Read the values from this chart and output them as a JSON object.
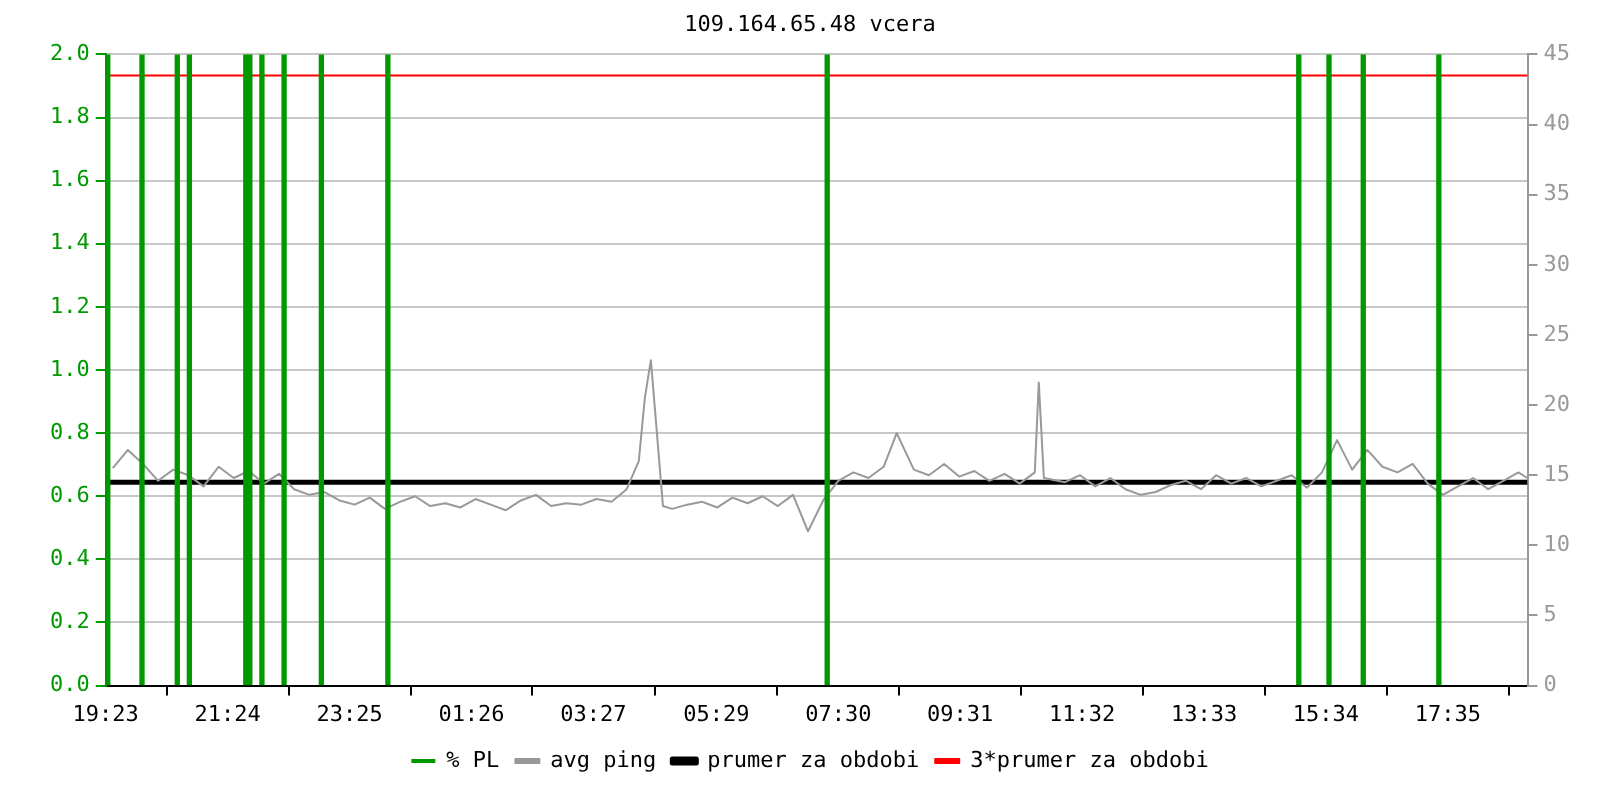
{
  "chart_data": {
    "type": "line",
    "title": "109.164.65.48 vcera",
    "xlim": [
      "--01-01T19:23",
      "--01-02T18:54"
    ],
    "xticks": [
      {
        "value": "--01-01T19:23",
        "label": "19:23"
      },
      {
        "value": "--01-01T21:24",
        "label": "21:24"
      },
      {
        "value": "--01-01T23:25",
        "label": "23:25"
      },
      {
        "value": "--01-02T01:26",
        "label": "01:26"
      },
      {
        "value": "--01-02T03:27",
        "label": "03:27"
      },
      {
        "value": "--01-02T05:29",
        "label": "05:29"
      },
      {
        "value": "--01-02T07:30",
        "label": "07:30"
      },
      {
        "value": "--01-02T09:31",
        "label": "09:31"
      },
      {
        "value": "--01-02T11:32",
        "label": "11:32"
      },
      {
        "value": "--01-02T13:33",
        "label": "13:33"
      },
      {
        "value": "--01-02T15:34",
        "label": "15:34"
      },
      {
        "value": "--01-02T17:35",
        "label": "17:35"
      }
    ],
    "ylim": [
      0,
      2
    ],
    "yticks": [
      {
        "value": 0,
        "label": "0.0"
      },
      {
        "value": 0.2,
        "label": "0.2"
      },
      {
        "value": 0.4,
        "label": "0.4"
      },
      {
        "value": 0.6,
        "label": "0.6"
      },
      {
        "value": 0.8,
        "label": "0.8"
      },
      {
        "value": 1,
        "label": "1.0"
      },
      {
        "value": 1.2,
        "label": "1.2"
      },
      {
        "value": 1.4,
        "label": "1.4"
      },
      {
        "value": 1.6,
        "label": "1.6"
      },
      {
        "value": 1.8,
        "label": "1.8"
      },
      {
        "value": 2,
        "label": "2.0"
      }
    ],
    "y2lim": [
      0,
      45
    ],
    "y2ticks": [
      0,
      5,
      10,
      15,
      20,
      25,
      30,
      35,
      40,
      45
    ],
    "grid": "y",
    "legend": "bottom",
    "series": [
      {
        "name": "% PL",
        "type": "bar",
        "color": "#009900",
        "x": [
          "--01-01T19:25",
          "--01-01T19:59",
          "--01-01T20:34",
          "--01-01T20:46",
          "--01-01T21:42",
          "--01-01T21:46",
          "--01-01T21:58",
          "--01-01T22:20",
          "--01-01T22:57",
          "--01-02T00:03",
          "--01-02T07:19",
          "--01-02T15:07",
          "--01-02T15:37",
          "--01-02T16:11",
          "--01-02T17:26"
        ],
        "values": [
          2,
          2,
          2,
          2,
          2,
          2,
          2,
          2,
          2,
          2,
          2,
          2,
          2,
          2,
          2
        ]
      },
      {
        "name": "avg ping",
        "axis": "y2",
        "color": "#999999",
        "x": [
          "--01-01T19:30",
          "--01-01T19:45",
          "--01-01T20:00",
          "--01-01T20:15",
          "--01-01T20:30",
          "--01-01T20:45",
          "--01-01T21:00",
          "--01-01T21:15",
          "--01-01T21:30",
          "--01-01T21:45",
          "--01-01T22:00",
          "--01-01T22:15",
          "--01-01T22:30",
          "--01-01T22:45",
          "--01-01T23:00",
          "--01-01T23:15",
          "--01-01T23:30",
          "--01-01T23:45",
          "--01-02T00:00",
          "--01-02T00:15",
          "--01-02T00:30",
          "--01-02T00:45",
          "--01-02T01:00",
          "--01-02T01:15",
          "--01-02T01:30",
          "--01-02T01:45",
          "--01-02T02:00",
          "--01-02T02:15",
          "--01-02T02:30",
          "--01-02T02:45",
          "--01-02T03:00",
          "--01-02T03:15",
          "--01-02T03:30",
          "--01-02T03:45",
          "--01-02T04:00",
          "--01-02T04:12",
          "--01-02T04:18",
          "--01-02T04:24",
          "--01-02T04:30",
          "--01-02T04:36",
          "--01-02T04:45",
          "--01-02T05:00",
          "--01-02T05:15",
          "--01-02T05:30",
          "--01-02T05:45",
          "--01-02T06:00",
          "--01-02T06:15",
          "--01-02T06:30",
          "--01-02T06:45",
          "--01-02T07:00",
          "--01-02T07:15",
          "--01-02T07:30",
          "--01-02T07:45",
          "--01-02T08:00",
          "--01-02T08:15",
          "--01-02T08:28",
          "--01-02T08:45",
          "--01-02T09:00",
          "--01-02T09:15",
          "--01-02T09:30",
          "--01-02T09:45",
          "--01-02T10:00",
          "--01-02T10:15",
          "--01-02T10:30",
          "--01-02T10:45",
          "--01-02T10:49",
          "--01-02T10:54",
          "--01-02T11:15",
          "--01-02T11:30",
          "--01-02T11:45",
          "--01-02T12:00",
          "--01-02T12:15",
          "--01-02T12:30",
          "--01-02T12:45",
          "--01-02T13:00",
          "--01-02T13:15",
          "--01-02T13:30",
          "--01-02T13:45",
          "--01-02T14:00",
          "--01-02T14:15",
          "--01-02T14:30",
          "--01-02T14:45",
          "--01-02T15:00",
          "--01-02T15:15",
          "--01-02T15:30",
          "--01-02T15:45",
          "--01-02T16:00",
          "--01-02T16:15",
          "--01-02T16:30",
          "--01-02T16:45",
          "--01-02T17:00",
          "--01-02T17:15",
          "--01-02T17:30",
          "--01-02T17:45",
          "--01-02T18:00",
          "--01-02T18:15",
          "--01-02T18:30",
          "--01-02T18:45",
          "--01-02T18:54"
        ],
        "values": [
          15.5,
          16.8,
          15.8,
          14.6,
          15.4,
          15.0,
          14.2,
          15.6,
          14.8,
          15.3,
          14.4,
          15.1,
          14.0,
          13.6,
          13.8,
          13.2,
          12.9,
          13.4,
          12.6,
          13.1,
          13.5,
          12.8,
          13.0,
          12.7,
          13.3,
          12.9,
          12.5,
          13.2,
          13.6,
          12.8,
          13.0,
          12.9,
          13.3,
          13.1,
          14.0,
          16.0,
          20.5,
          23.2,
          18.0,
          12.8,
          12.6,
          12.9,
          13.1,
          12.7,
          13.4,
          13.0,
          13.5,
          12.8,
          13.6,
          11.0,
          13.2,
          14.6,
          15.2,
          14.8,
          15.6,
          18.0,
          15.4,
          15.0,
          15.8,
          14.9,
          15.3,
          14.6,
          15.1,
          14.4,
          15.2,
          21.6,
          14.8,
          14.5,
          15.0,
          14.2,
          14.8,
          14.0,
          13.6,
          13.8,
          14.3,
          14.6,
          14.0,
          15.0,
          14.4,
          14.8,
          14.2,
          14.6,
          15.0,
          14.1,
          15.2,
          17.5,
          15.4,
          16.8,
          15.6,
          15.2,
          15.8,
          14.4,
          13.6,
          14.2,
          14.8,
          14.0,
          14.6,
          15.2,
          14.8
        ]
      },
      {
        "name": "prumer za obdobi",
        "axis": "y2",
        "color": "#000000",
        "x": [
          "--01-01T19:23",
          "--01-02T18:54"
        ],
        "values": [
          14.5,
          14.5
        ]
      },
      {
        "name": "3*prumer za obdobi",
        "axis": "y2",
        "color": "#ff0000",
        "x": [
          "--01-01T19:23",
          "--01-02T18:54"
        ],
        "values": [
          43.5,
          43.5
        ]
      }
    ]
  }
}
